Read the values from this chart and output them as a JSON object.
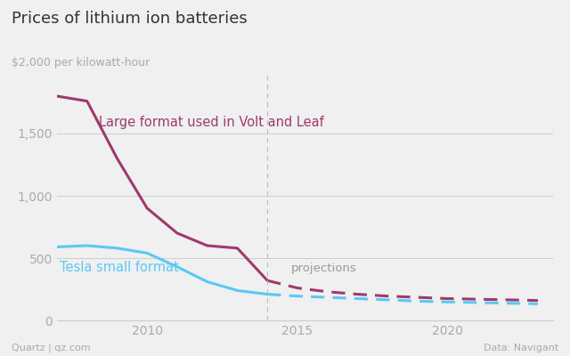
{
  "title": "Prices of lithium ion batteries",
  "ylabel": "$2,000 per kilowatt-hour",
  "xlabel_source_left": "Quartz | qz.com",
  "xlabel_source_right": "Data: Navigant",
  "bg_color": "#f0f0f0",
  "large_format_solid": {
    "years": [
      2007,
      2008,
      2009,
      2010,
      2011,
      2012,
      2013,
      2014
    ],
    "values": [
      1800,
      1760,
      1300,
      900,
      700,
      600,
      580,
      320
    ],
    "color": "#9e3a6e",
    "label": "Large format used in Volt and Leaf"
  },
  "large_format_dashed": {
    "years": [
      2014,
      2015,
      2016,
      2017,
      2018,
      2019,
      2020,
      2021,
      2022,
      2023
    ],
    "values": [
      320,
      260,
      230,
      210,
      195,
      185,
      175,
      170,
      165,
      160
    ],
    "color": "#9e3a6e"
  },
  "tesla_solid": {
    "years": [
      2007,
      2008,
      2009,
      2010,
      2011,
      2012,
      2013,
      2014
    ],
    "values": [
      590,
      600,
      580,
      540,
      430,
      310,
      240,
      210
    ],
    "color": "#5bc8f5",
    "label": "Tesla small format"
  },
  "tesla_dashed": {
    "years": [
      2014,
      2015,
      2016,
      2017,
      2018,
      2019,
      2020,
      2021,
      2022,
      2023
    ],
    "values": [
      210,
      195,
      185,
      175,
      165,
      155,
      148,
      143,
      138,
      133
    ],
    "color": "#5bc8f5"
  },
  "projections_label": "projections",
  "projections_x": 2014.8,
  "projections_y": 390,
  "ylim": [
    0,
    2000
  ],
  "xlim": [
    2007,
    2023.5
  ],
  "yticks": [
    0,
    500,
    1000,
    1500
  ],
  "xticks": [
    2010,
    2015,
    2020
  ],
  "vline_x": 2014
}
